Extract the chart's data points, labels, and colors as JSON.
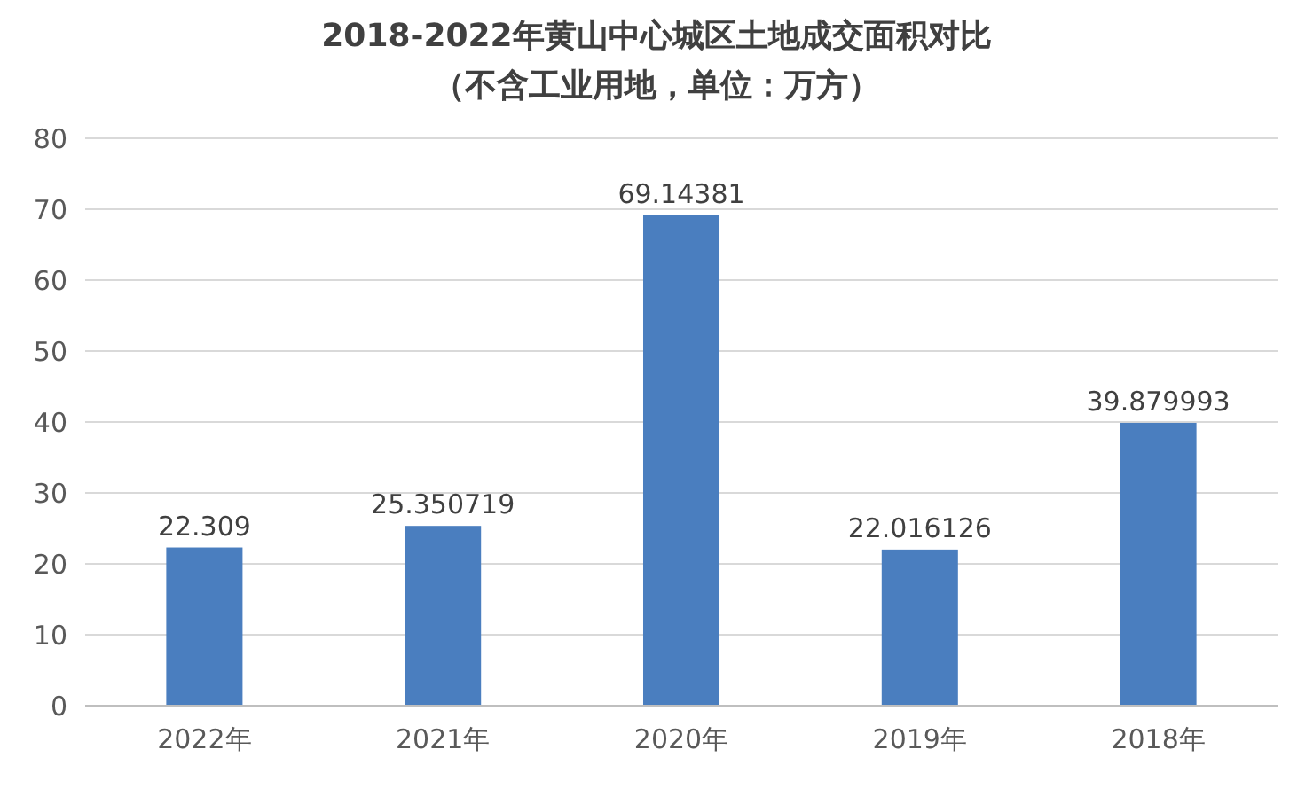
{
  "chart_data": {
    "type": "bar",
    "title": "2018-2022年黄山中心城区土地成交面积对比",
    "subtitle": "（不含工业用地，单位：万方）",
    "categories": [
      "2022年",
      "2021年",
      "2020年",
      "2019年",
      "2018年"
    ],
    "values": [
      22.309,
      25.350719,
      69.14381,
      22.016126,
      39.879993
    ],
    "color": "#4a7ebf",
    "ylim": [
      0,
      80
    ],
    "yticks": [
      0,
      10,
      20,
      30,
      40,
      50,
      60,
      70,
      80
    ],
    "grid": "y",
    "data_labels": true
  }
}
